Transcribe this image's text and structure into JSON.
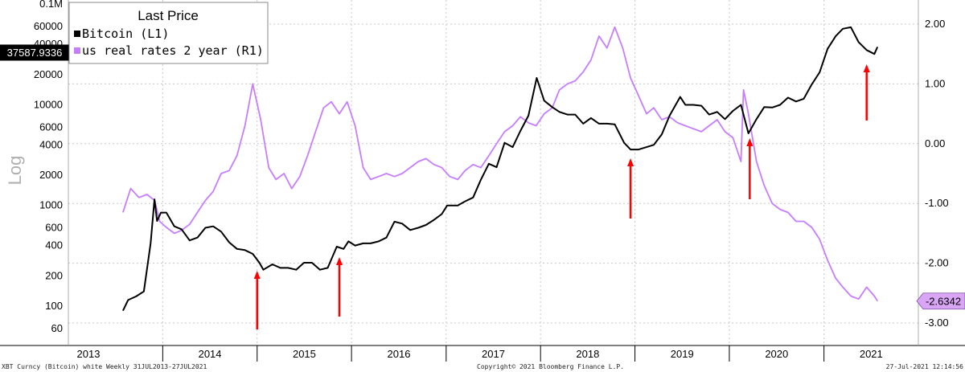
{
  "chart_data": {
    "type": "line",
    "title": "",
    "y_left_label": "Log",
    "y_left_scale": "log",
    "y_left_ticks": [
      "0.1M",
      "60000",
      "40000",
      "20000",
      "10000",
      "6000",
      "4000",
      "2000",
      "1000",
      "600",
      "400",
      "200",
      "100",
      "60"
    ],
    "y_right_ticks": [
      "2.00",
      "1.00",
      "0.00",
      "-1.00",
      "-2.00",
      "-3.00"
    ],
    "x_years": [
      "2013",
      "2014",
      "2015",
      "2016",
      "2017",
      "2018",
      "2019",
      "2020",
      "2021"
    ],
    "legend": {
      "title": "Last Price",
      "placement": "top-left",
      "items": [
        {
          "label": "Bitcoin  (L1)",
          "color": "#000000"
        },
        {
          "label": "us real rates 2 year  (R1)",
          "color": "#c77dff"
        }
      ]
    },
    "series": [
      {
        "name": "Bitcoin  (L1)",
        "axis": "left",
        "color": "#000000",
        "last_value": "37587.9336",
        "points": [
          [
            "2013-07-31",
            90
          ],
          [
            "2013-08-20",
            115
          ],
          [
            "2013-09-20",
            125
          ],
          [
            "2013-10-20",
            140
          ],
          [
            "2013-11-15",
            420
          ],
          [
            "2013-11-30",
            1150
          ],
          [
            "2013-12-10",
            700
          ],
          [
            "2013-12-25",
            850
          ],
          [
            "2014-01-15",
            850
          ],
          [
            "2014-02-15",
            620
          ],
          [
            "2014-03-15",
            580
          ],
          [
            "2014-04-15",
            450
          ],
          [
            "2014-05-15",
            480
          ],
          [
            "2014-06-15",
            600
          ],
          [
            "2014-07-15",
            620
          ],
          [
            "2014-08-15",
            550
          ],
          [
            "2014-09-15",
            430
          ],
          [
            "2014-10-15",
            370
          ],
          [
            "2014-11-15",
            360
          ],
          [
            "2014-12-15",
            330
          ],
          [
            "2015-01-10",
            270
          ],
          [
            "2015-01-25",
            230
          ],
          [
            "2015-03-01",
            260
          ],
          [
            "2015-04-01",
            240
          ],
          [
            "2015-05-01",
            240
          ],
          [
            "2015-06-01",
            230
          ],
          [
            "2015-07-01",
            270
          ],
          [
            "2015-08-01",
            270
          ],
          [
            "2015-09-01",
            230
          ],
          [
            "2015-10-01",
            240
          ],
          [
            "2015-11-05",
            390
          ],
          [
            "2015-12-01",
            370
          ],
          [
            "2015-12-20",
            440
          ],
          [
            "2016-01-15",
            400
          ],
          [
            "2016-02-15",
            420
          ],
          [
            "2016-03-15",
            420
          ],
          [
            "2016-04-15",
            440
          ],
          [
            "2016-05-15",
            480
          ],
          [
            "2016-06-15",
            690
          ],
          [
            "2016-07-15",
            660
          ],
          [
            "2016-08-15",
            570
          ],
          [
            "2016-09-15",
            600
          ],
          [
            "2016-10-15",
            640
          ],
          [
            "2016-11-15",
            720
          ],
          [
            "2016-12-15",
            820
          ],
          [
            "2017-01-05",
            1000
          ],
          [
            "2017-02-15",
            1000
          ],
          [
            "2017-03-15",
            1100
          ],
          [
            "2017-04-15",
            1200
          ],
          [
            "2017-05-15",
            1800
          ],
          [
            "2017-06-15",
            2600
          ],
          [
            "2017-07-15",
            2400
          ],
          [
            "2017-08-15",
            4200
          ],
          [
            "2017-09-15",
            3800
          ],
          [
            "2017-10-15",
            5500
          ],
          [
            "2017-11-15",
            7800
          ],
          [
            "2017-12-17",
            18500
          ],
          [
            "2018-01-15",
            11000
          ],
          [
            "2018-02-15",
            9500
          ],
          [
            "2018-03-15",
            8500
          ],
          [
            "2018-04-15",
            8000
          ],
          [
            "2018-05-15",
            8000
          ],
          [
            "2018-06-15",
            6500
          ],
          [
            "2018-07-15",
            7400
          ],
          [
            "2018-08-15",
            6500
          ],
          [
            "2018-09-15",
            6500
          ],
          [
            "2018-10-15",
            6400
          ],
          [
            "2018-11-20",
            4200
          ],
          [
            "2018-12-15",
            3600
          ],
          [
            "2019-01-15",
            3600
          ],
          [
            "2019-02-15",
            3800
          ],
          [
            "2019-03-15",
            4000
          ],
          [
            "2019-04-15",
            5100
          ],
          [
            "2019-05-15",
            7800
          ],
          [
            "2019-06-25",
            12000
          ],
          [
            "2019-07-15",
            10000
          ],
          [
            "2019-08-15",
            10000
          ],
          [
            "2019-09-15",
            9800
          ],
          [
            "2019-10-15",
            8000
          ],
          [
            "2019-11-15",
            8500
          ],
          [
            "2019-12-15",
            7200
          ],
          [
            "2020-01-15",
            8700
          ],
          [
            "2020-02-15",
            10000
          ],
          [
            "2020-03-15",
            5200
          ],
          [
            "2020-04-15",
            7200
          ],
          [
            "2020-05-15",
            9500
          ],
          [
            "2020-06-15",
            9400
          ],
          [
            "2020-07-15",
            10000
          ],
          [
            "2020-08-15",
            11800
          ],
          [
            "2020-09-15",
            10800
          ],
          [
            "2020-10-15",
            11500
          ],
          [
            "2020-11-15",
            16000
          ],
          [
            "2020-12-15",
            21000
          ],
          [
            "2021-01-15",
            36000
          ],
          [
            "2021-02-15",
            48000
          ],
          [
            "2021-03-15",
            57000
          ],
          [
            "2021-04-15",
            59000
          ],
          [
            "2021-05-15",
            42000
          ],
          [
            "2021-06-15",
            35000
          ],
          [
            "2021-07-15",
            32000
          ],
          [
            "2021-07-27",
            37587.9336
          ]
        ]
      },
      {
        "name": "us real rates 2 year  (R1)",
        "axis": "right",
        "color": "#c77dff",
        "last_value": "-2.6342",
        "points": [
          [
            "2013-07-31",
            -1.15
          ],
          [
            "2013-08-30",
            -0.75
          ],
          [
            "2013-10-01",
            -0.9
          ],
          [
            "2013-11-01",
            -0.85
          ],
          [
            "2013-12-01",
            -0.95
          ],
          [
            "2013-12-20",
            -1.3
          ],
          [
            "2014-01-15",
            -1.4
          ],
          [
            "2014-02-15",
            -1.5
          ],
          [
            "2014-03-15",
            -1.45
          ],
          [
            "2014-04-15",
            -1.35
          ],
          [
            "2014-05-15",
            -1.15
          ],
          [
            "2014-06-15",
            -0.95
          ],
          [
            "2014-07-15",
            -0.8
          ],
          [
            "2014-08-15",
            -0.5
          ],
          [
            "2014-09-15",
            -0.45
          ],
          [
            "2014-10-15",
            -0.2
          ],
          [
            "2014-11-15",
            0.3
          ],
          [
            "2014-12-15",
            1.0
          ],
          [
            "2015-01-15",
            0.4
          ],
          [
            "2015-02-15",
            -0.4
          ],
          [
            "2015-03-15",
            -0.6
          ],
          [
            "2015-04-15",
            -0.5
          ],
          [
            "2015-05-15",
            -0.75
          ],
          [
            "2015-06-15",
            -0.55
          ],
          [
            "2015-07-15",
            -0.2
          ],
          [
            "2015-08-15",
            0.2
          ],
          [
            "2015-09-15",
            0.6
          ],
          [
            "2015-10-15",
            0.7
          ],
          [
            "2015-11-15",
            0.5
          ],
          [
            "2015-12-15",
            0.7
          ],
          [
            "2016-01-15",
            0.3
          ],
          [
            "2016-02-15",
            -0.4
          ],
          [
            "2016-03-15",
            -0.6
          ],
          [
            "2016-04-15",
            -0.55
          ],
          [
            "2016-05-15",
            -0.5
          ],
          [
            "2016-06-15",
            -0.55
          ],
          [
            "2016-07-15",
            -0.5
          ],
          [
            "2016-08-15",
            -0.4
          ],
          [
            "2016-09-15",
            -0.3
          ],
          [
            "2016-10-15",
            -0.25
          ],
          [
            "2016-11-15",
            -0.35
          ],
          [
            "2016-12-15",
            -0.4
          ],
          [
            "2017-01-15",
            -0.55
          ],
          [
            "2017-02-15",
            -0.6
          ],
          [
            "2017-03-15",
            -0.45
          ],
          [
            "2017-04-15",
            -0.35
          ],
          [
            "2017-05-15",
            -0.4
          ],
          [
            "2017-06-15",
            -0.2
          ],
          [
            "2017-07-15",
            0.0
          ],
          [
            "2017-08-15",
            0.2
          ],
          [
            "2017-09-15",
            0.3
          ],
          [
            "2017-10-15",
            0.45
          ],
          [
            "2017-11-15",
            0.35
          ],
          [
            "2017-12-15",
            0.3
          ],
          [
            "2018-01-15",
            0.5
          ],
          [
            "2018-02-15",
            0.6
          ],
          [
            "2018-03-15",
            0.9
          ],
          [
            "2018-04-15",
            1.0
          ],
          [
            "2018-05-15",
            1.05
          ],
          [
            "2018-06-15",
            1.2
          ],
          [
            "2018-07-15",
            1.4
          ],
          [
            "2018-08-15",
            1.8
          ],
          [
            "2018-09-15",
            1.6
          ],
          [
            "2018-10-15",
            1.95
          ],
          [
            "2018-11-15",
            1.6
          ],
          [
            "2018-12-15",
            1.1
          ],
          [
            "2019-01-15",
            0.8
          ],
          [
            "2019-02-15",
            0.5
          ],
          [
            "2019-03-15",
            0.6
          ],
          [
            "2019-04-15",
            0.4
          ],
          [
            "2019-05-15",
            0.45
          ],
          [
            "2019-06-15",
            0.35
          ],
          [
            "2019-07-15",
            0.3
          ],
          [
            "2019-08-15",
            0.25
          ],
          [
            "2019-09-15",
            0.2
          ],
          [
            "2019-10-15",
            0.3
          ],
          [
            "2019-11-15",
            0.4
          ],
          [
            "2019-12-15",
            0.2
          ],
          [
            "2020-01-15",
            0.1
          ],
          [
            "2020-02-15",
            -0.3
          ],
          [
            "2020-02-25",
            0.9
          ],
          [
            "2020-03-15",
            0.5
          ],
          [
            "2020-04-15",
            -0.3
          ],
          [
            "2020-05-15",
            -0.7
          ],
          [
            "2020-06-15",
            -1.0
          ],
          [
            "2020-07-15",
            -1.1
          ],
          [
            "2020-08-15",
            -1.15
          ],
          [
            "2020-09-15",
            -1.3
          ],
          [
            "2020-10-15",
            -1.3
          ],
          [
            "2020-11-15",
            -1.4
          ],
          [
            "2020-12-15",
            -1.6
          ],
          [
            "2021-01-15",
            -1.95
          ],
          [
            "2021-02-15",
            -2.25
          ],
          [
            "2021-03-15",
            -2.4
          ],
          [
            "2021-04-15",
            -2.55
          ],
          [
            "2021-05-15",
            -2.6
          ],
          [
            "2021-06-15",
            -2.4
          ],
          [
            "2021-07-15",
            -2.55
          ],
          [
            "2021-07-27",
            -2.6342
          ]
        ]
      }
    ],
    "annotations": [
      {
        "type": "arrow",
        "color": "#ff0000",
        "label": "",
        "date": "2015-01-01",
        "direction": "up"
      },
      {
        "type": "arrow",
        "color": "#ff0000",
        "label": "",
        "date": "2015-11-15",
        "direction": "up"
      },
      {
        "type": "arrow",
        "color": "#ff0000",
        "label": "",
        "date": "2018-12-15",
        "direction": "up"
      },
      {
        "type": "arrow",
        "color": "#ff0000",
        "label": "",
        "date": "2020-03-20",
        "direction": "up"
      },
      {
        "type": "arrow",
        "color": "#ff0000",
        "label": "",
        "date": "2021-06-15",
        "direction": "up"
      }
    ]
  },
  "footer": {
    "left": "XBT Curncy (Bitcoin) white  Weekly 31JUL2013-27JUL2021",
    "center": "Copyright© 2021 Bloomberg Finance L.P.",
    "right": "27-Jul-2021 12:14:56"
  },
  "colors": {
    "grid": "#c8c8c8",
    "arrow": "#ff0000",
    "rates_badge": "#d9a6f5"
  }
}
